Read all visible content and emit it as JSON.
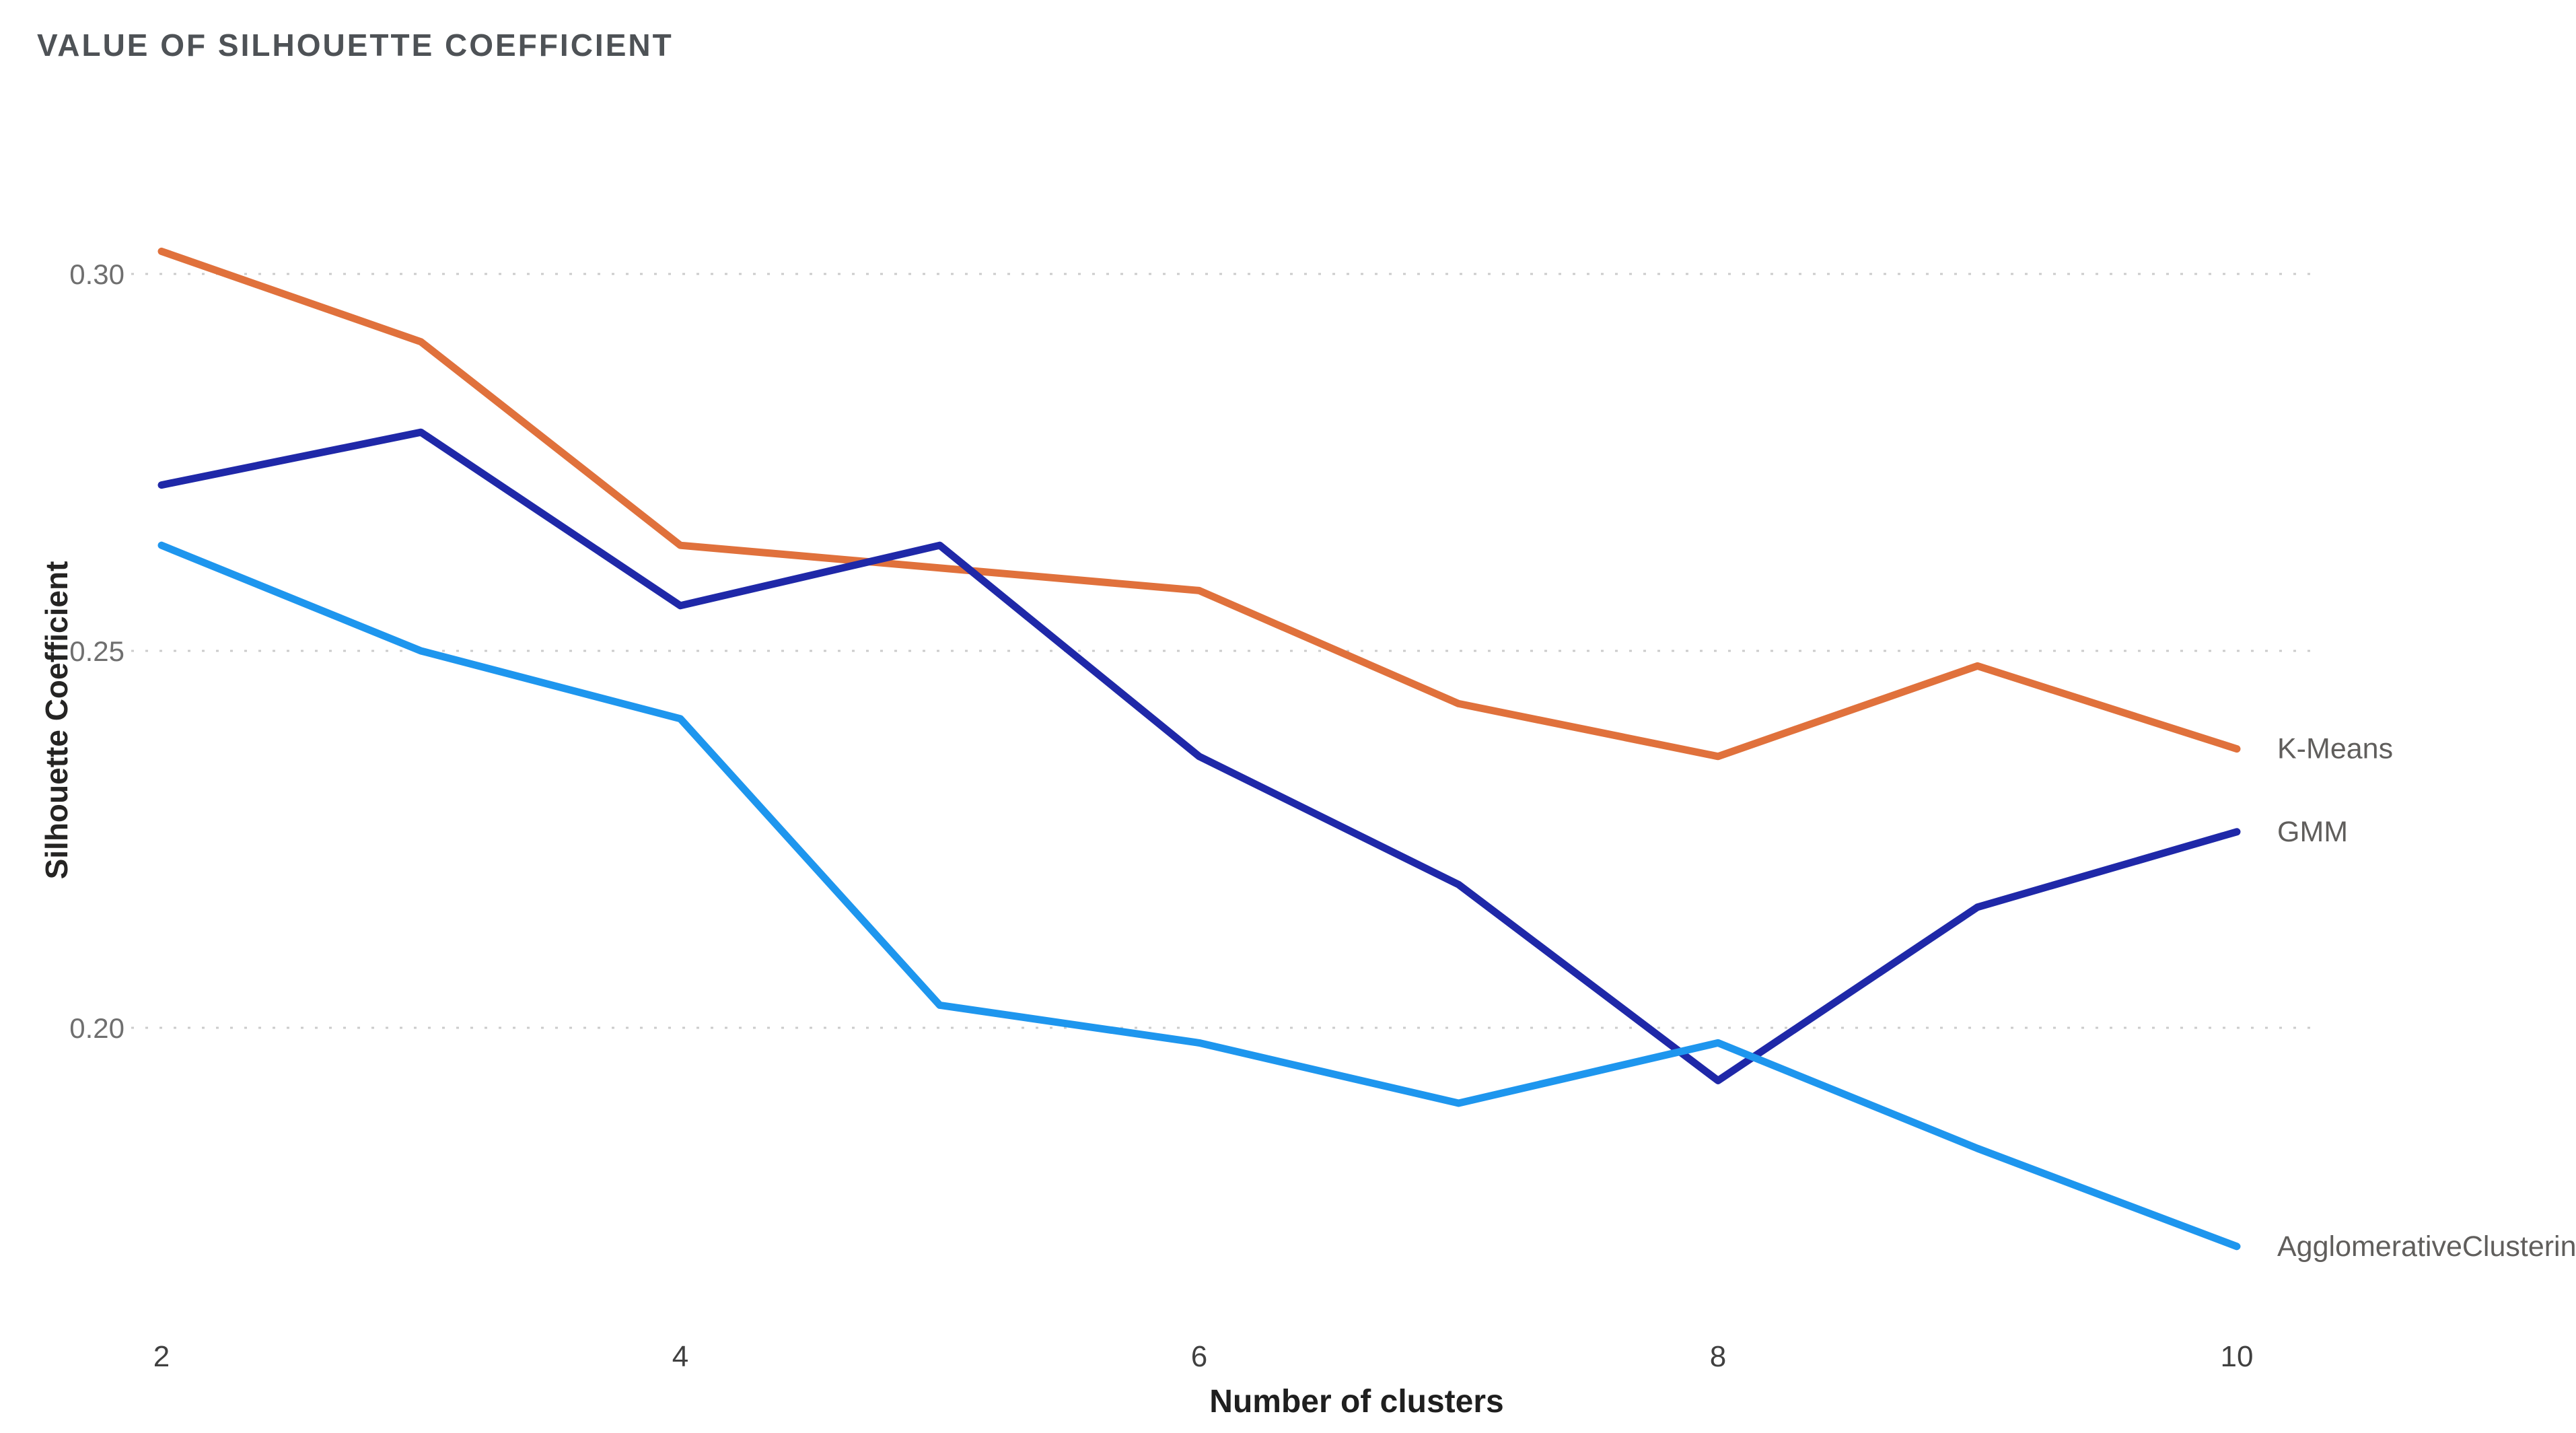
{
  "header": {
    "title": "VALUE OF SILHOUETTE COEFFICIENT"
  },
  "colors": {
    "kmeans_orange": "#E0713C",
    "gmm_navy": "#1F28A8",
    "agglomerative_blue": "#1E96EE",
    "gridline_gray": "#CBCBCB",
    "title_gray": "#4E5256",
    "tick_gray": "#6F6F6F",
    "axis_title_dark": "#252423",
    "legend_gray": "#605E5C",
    "background": "#FFFFFF"
  },
  "chart_data": {
    "type": "line",
    "title": "VALUE OF SILHOUETTE COEFFICIENT",
    "xlabel": "Number of clusters",
    "ylabel": "Silhouette Coefficient",
    "x": [
      2,
      3,
      4,
      5,
      6,
      7,
      8,
      9,
      10
    ],
    "x_ticks": [
      2,
      4,
      6,
      8,
      10
    ],
    "y_ticks": [
      0.3,
      0.25,
      0.2
    ],
    "ylim": [
      0.16,
      0.31
    ],
    "xlim": [
      2,
      10
    ],
    "grid": "horizontal-dotted",
    "legend_position": "line-end-labels-right",
    "series": [
      {
        "name": "K-Means",
        "color": "#E0713C",
        "values": [
          0.303,
          0.291,
          0.264,
          0.261,
          0.258,
          0.243,
          0.236,
          0.248,
          0.237
        ]
      },
      {
        "name": "GMM",
        "color": "#1F28A8",
        "values": [
          0.272,
          0.279,
          0.256,
          0.264,
          0.236,
          0.219,
          0.193,
          0.216,
          0.226
        ]
      },
      {
        "name": "AgglomerativeClustering",
        "color": "#1E96EE",
        "values": [
          0.264,
          0.25,
          0.241,
          0.203,
          0.198,
          0.19,
          0.198,
          0.184,
          0.171
        ]
      }
    ]
  }
}
